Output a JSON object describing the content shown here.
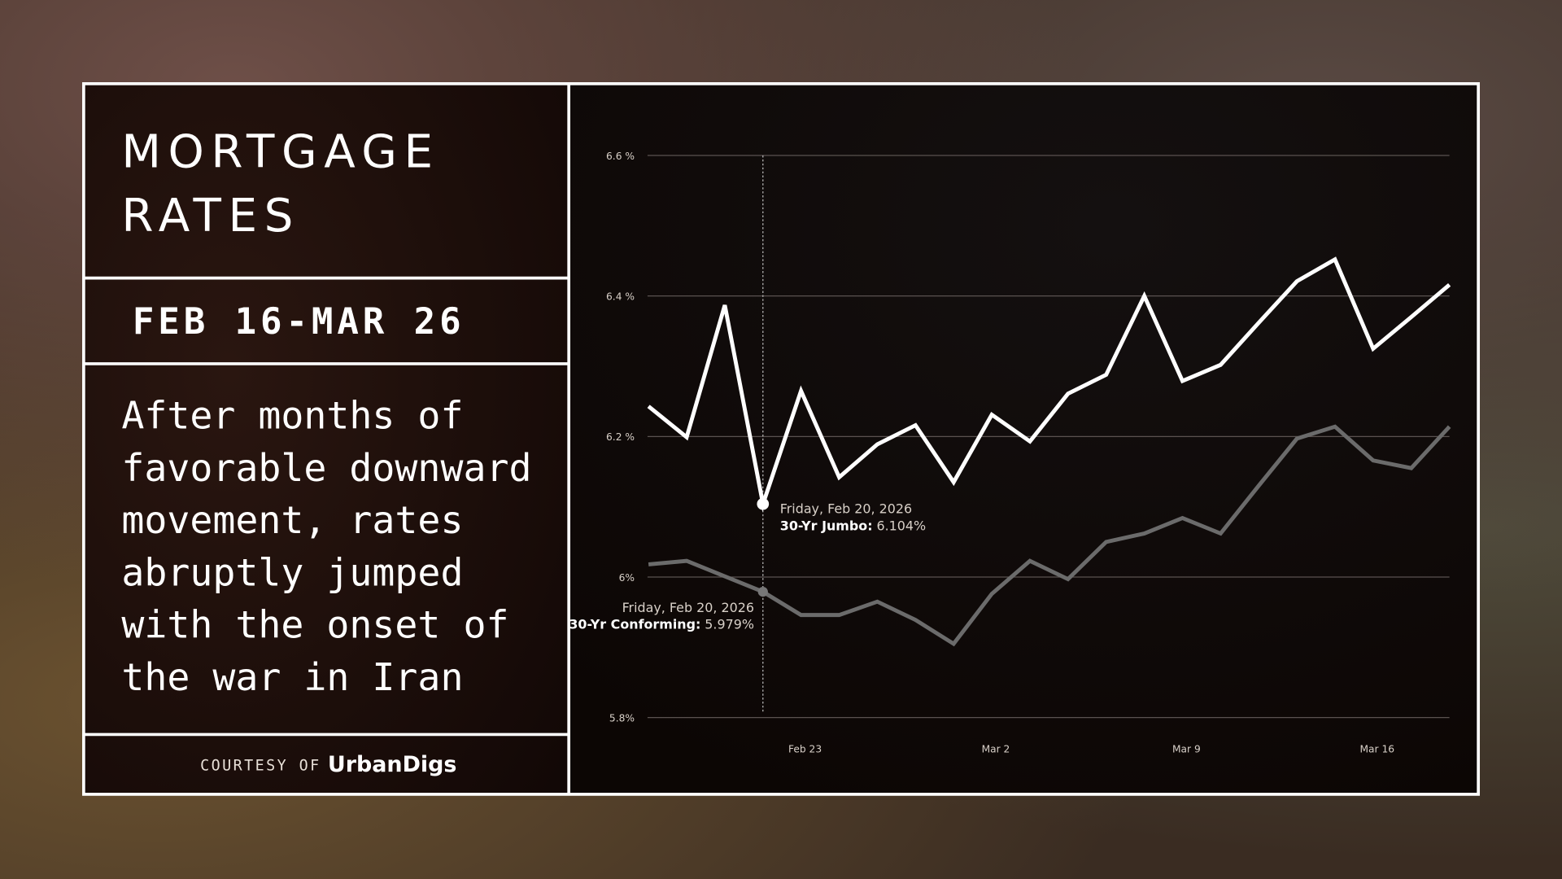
{
  "panel": {
    "title_lines": [
      "MORTGAGE",
      "RATES"
    ],
    "date_range": "FEB 16-MAR 26",
    "description_lines": [
      "After months of",
      "favorable downward",
      "movement, rates",
      "abruptly jumped",
      "with the onset of",
      "the war in Iran"
    ],
    "courtesy_prefix": "COURTESY OF",
    "courtesy_brand": "UrbanDigs"
  },
  "chart_data": {
    "type": "line",
    "categories": [
      null,
      null,
      null,
      null,
      "Feb 23",
      null,
      null,
      null,
      null,
      "Mar 2",
      null,
      null,
      null,
      null,
      "Mar 9",
      null,
      null,
      null,
      null,
      "Mar 16",
      null,
      null
    ],
    "series": [
      {
        "color": "#ffffff",
        "values": [
          6.243,
          6.199,
          6.387,
          6.104,
          6.265,
          6.142,
          6.189,
          6.216,
          6.135,
          6.231,
          6.193,
          6.261,
          6.288,
          6.4,
          6.279,
          6.302,
          6.362,
          6.421,
          6.452,
          6.325,
          6.37,
          6.416
        ]
      },
      {
        "color": "#6b6b6b",
        "values": [
          6.018,
          6.023,
          6.001,
          5.979,
          5.946,
          5.946,
          5.965,
          5.939,
          5.905,
          5.976,
          6.023,
          5.997,
          6.05,
          6.062,
          6.084,
          6.062,
          6.13,
          6.197,
          6.214,
          6.166,
          6.155,
          6.214
        ]
      }
    ],
    "ylim": [
      5.8,
      6.6
    ],
    "yticks": [
      {
        "value": 5.8,
        "label": "5.8%"
      },
      {
        "value": 6.0,
        "label": "6%"
      },
      {
        "value": 6.2,
        "label": "6.2 %"
      },
      {
        "value": 6.4,
        "label": "6.4 %"
      },
      {
        "value": 6.6,
        "label": "6.6 %"
      }
    ],
    "grid": true,
    "annotations": [
      {
        "date": "Friday, Feb 20, 2026",
        "label": "30-Yr Jumbo:",
        "value": 6.104,
        "value_label": "6.104%"
      },
      {
        "date": "Friday, Feb 20, 2026",
        "label": "30-Yr Conforming:",
        "value": 5.979,
        "value_label": "5.979%"
      }
    ]
  }
}
